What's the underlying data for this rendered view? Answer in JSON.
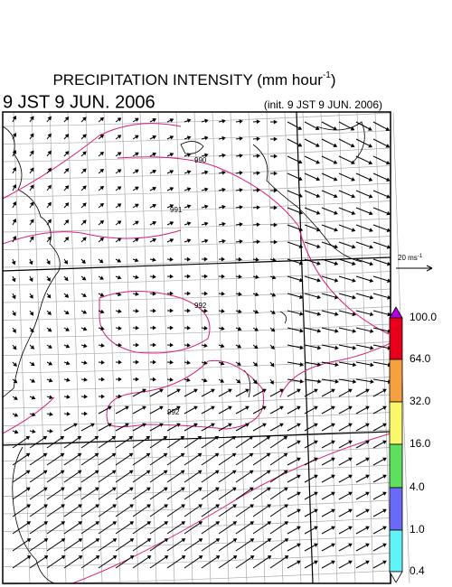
{
  "header": {
    "title": "PRECIPITATION INTENSITY (mm hour",
    "title_sup": "-1",
    "title_end": ")",
    "valid_time": "9 JST 9 JUN. 2006",
    "init_time": "(init. 9 JST 9 JUN. 2006)"
  },
  "reference_vector": {
    "label": "20 ms",
    "label_sup": "-1"
  },
  "colorbar": {
    "labels": [
      "100.0",
      "64.0",
      "32.0",
      "16.0",
      "4.0",
      "1.0",
      "0.4"
    ]
  },
  "contour_labels": [
    "990",
    "991",
    "992",
    "992"
  ]
}
